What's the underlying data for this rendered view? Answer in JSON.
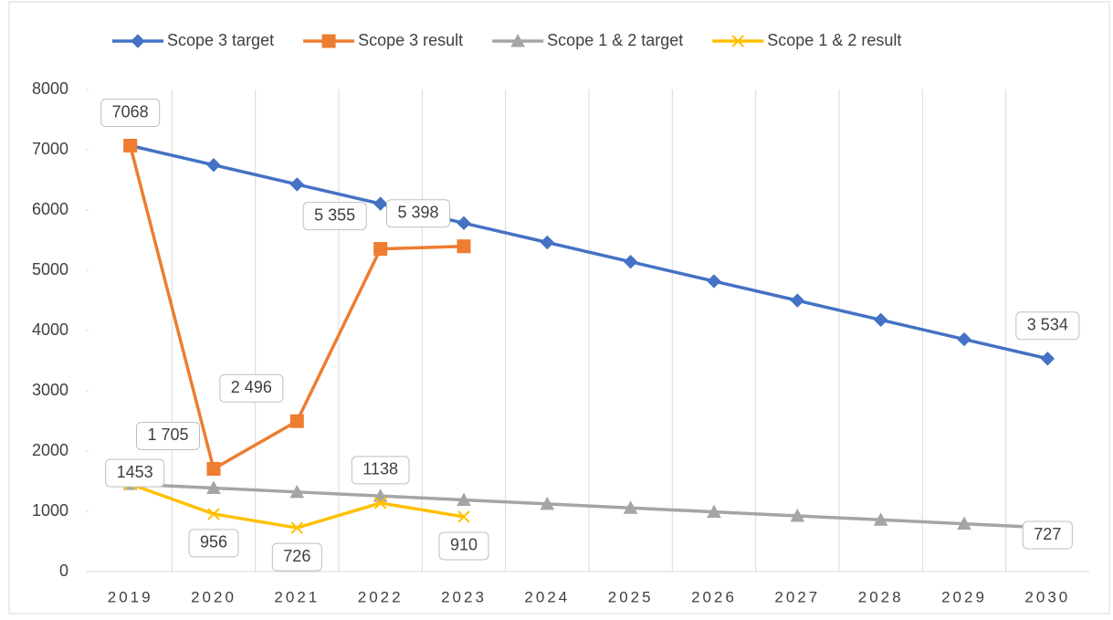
{
  "chart_data": {
    "type": "line",
    "categories": [
      "2019",
      "2020",
      "2021",
      "2022",
      "2023",
      "2024",
      "2025",
      "2026",
      "2027",
      "2028",
      "2029",
      "2030"
    ],
    "series": [
      {
        "name": "Scope 3 target",
        "color": "#4472c4",
        "marker": "diamond",
        "values": [
          7068,
          6747,
          6425,
          6104,
          5783,
          5462,
          5141,
          4819,
          4498,
          4177,
          3855,
          3534
        ],
        "value_labels": [
          null,
          null,
          null,
          null,
          null,
          null,
          null,
          null,
          null,
          null,
          null,
          "3 534"
        ]
      },
      {
        "name": "Scope 3 result",
        "color": "#ed7d31",
        "marker": "square",
        "values": [
          7068,
          1705,
          2496,
          5355,
          5398,
          null,
          null,
          null,
          null,
          null,
          null,
          null
        ],
        "value_labels": [
          "7068",
          "1 705",
          "2 496",
          "5 355",
          "5 398",
          null,
          null,
          null,
          null,
          null,
          null,
          null
        ]
      },
      {
        "name": "Scope 1 & 2 target",
        "color": "#a5a5a5",
        "marker": "triangle",
        "values": [
          1453,
          1387,
          1321,
          1255,
          1189,
          1123,
          1057,
          991,
          925,
          859,
          793,
          727
        ],
        "value_labels": [
          null,
          null,
          null,
          null,
          null,
          null,
          null,
          null,
          null,
          null,
          null,
          "727"
        ]
      },
      {
        "name": "Scope 1 & 2 result",
        "color": "#ffc000",
        "marker": "x",
        "values": [
          1453,
          956,
          726,
          1138,
          910,
          null,
          null,
          null,
          null,
          null,
          null,
          null
        ],
        "value_labels": [
          "1453",
          "956",
          "726",
          "1138",
          "910",
          null,
          null,
          null,
          null,
          null,
          null,
          null
        ]
      }
    ],
    "ylim": [
      0,
      8000
    ],
    "yticks": [
      0,
      1000,
      2000,
      3000,
      4000,
      5000,
      6000,
      7000,
      8000
    ],
    "grid": "x",
    "legend": "top"
  }
}
